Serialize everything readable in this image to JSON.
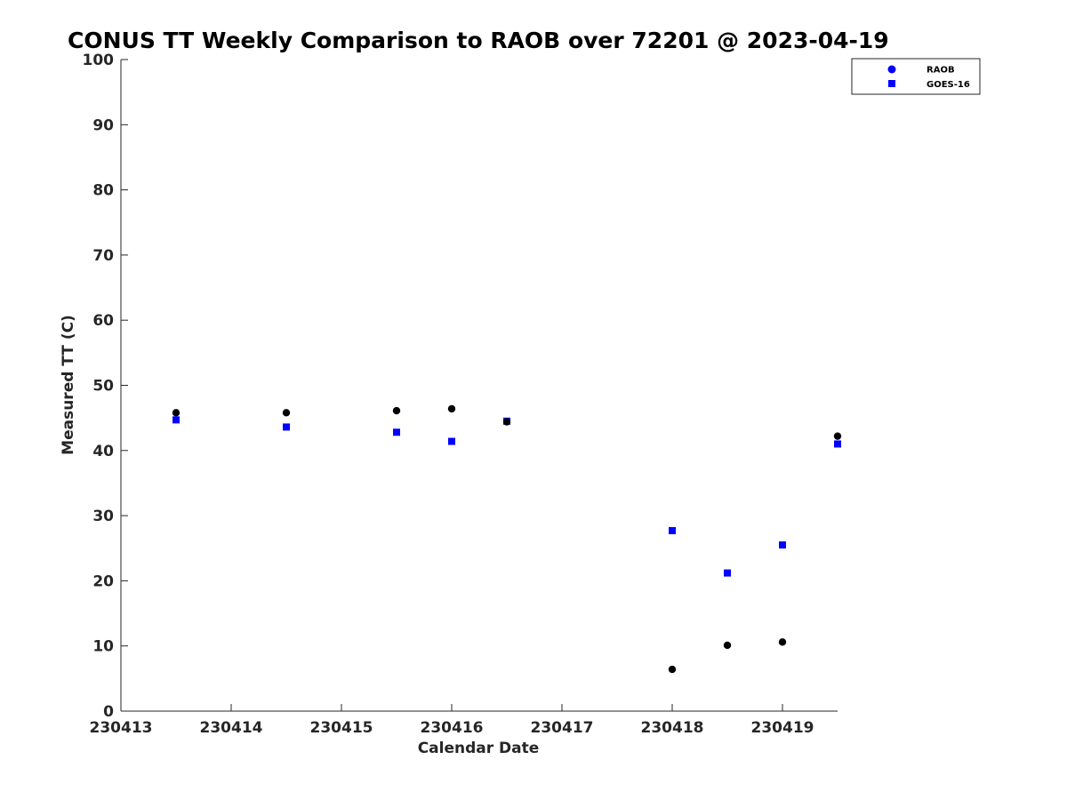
{
  "chart_data": {
    "type": "scatter",
    "title": "CONUS TT Weekly Comparison to RAOB over 72201 @ 2023-04-19",
    "xlabel": "Calendar Date",
    "ylabel": "Measured TT (C)",
    "xlim": [
      230413,
      230419.5
    ],
    "ylim": [
      0,
      100
    ],
    "xticks": [
      230413,
      230414,
      230415,
      230416,
      230417,
      230418,
      230419
    ],
    "xtick_labels": [
      "230413",
      "230414",
      "230415",
      "230416",
      "230417",
      "230418",
      "230419"
    ],
    "yticks": [
      0,
      10,
      20,
      30,
      40,
      50,
      60,
      70,
      80,
      90,
      100
    ],
    "ytick_labels": [
      "0",
      "10",
      "20",
      "30",
      "40",
      "50",
      "60",
      "70",
      "80",
      "90",
      "100"
    ],
    "grid": false,
    "legend_position": "top-right",
    "series": [
      {
        "name": "RAOB",
        "marker": "circle",
        "color": "#000000",
        "legend_color": "#0000ff",
        "x": [
          230413.5,
          230414.5,
          230415.5,
          230416,
          230416.5,
          230418,
          230418.5,
          230419,
          230419.5
        ],
        "y": [
          45.8,
          45.8,
          46.1,
          46.4,
          44.4,
          6.4,
          10.1,
          10.6,
          42.2
        ]
      },
      {
        "name": "GOES-16",
        "marker": "square",
        "color": "#0000ff",
        "legend_color": "#0000ff",
        "x": [
          230413.5,
          230414.5,
          230415.5,
          230416,
          230416.5,
          230418,
          230418.5,
          230419,
          230419.5
        ],
        "y": [
          44.7,
          43.6,
          42.8,
          41.4,
          44.5,
          27.7,
          21.2,
          25.5,
          41.0
        ]
      }
    ]
  }
}
